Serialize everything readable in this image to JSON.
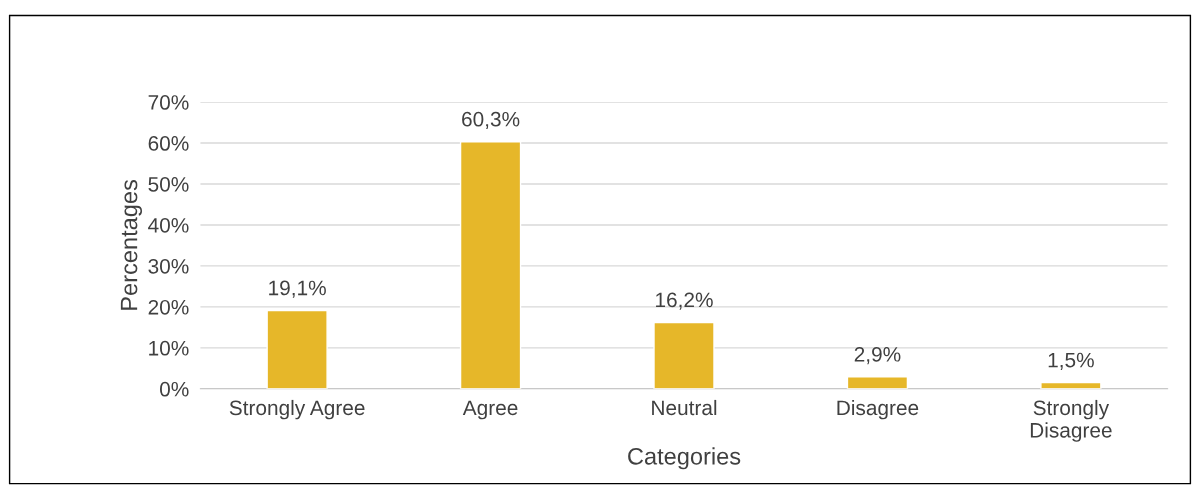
{
  "chart_data": {
    "type": "bar",
    "xlabel": "Categories",
    "ylabel": "Percentages",
    "categories": [
      "Strongly Agree",
      "Agree",
      "Neutral",
      "Disagree",
      "Strongly\nDisagree"
    ],
    "values": [
      19.1,
      60.3,
      16.2,
      2.9,
      1.5
    ],
    "value_labels": [
      "19,1%",
      "60,3%",
      "16,2%",
      "2,9%",
      "1,5%"
    ],
    "color": "#e6b729",
    "ylim": [
      0,
      70
    ],
    "yticks": [
      {
        "value": 0,
        "label": "0%"
      },
      {
        "value": 10,
        "label": "10%"
      },
      {
        "value": 20,
        "label": "20%"
      },
      {
        "value": 30,
        "label": "30%"
      },
      {
        "value": 40,
        "label": "40%"
      },
      {
        "value": 50,
        "label": "50%"
      },
      {
        "value": 60,
        "label": "60%"
      },
      {
        "value": 70,
        "label": "70%"
      }
    ],
    "grid": "y"
  }
}
